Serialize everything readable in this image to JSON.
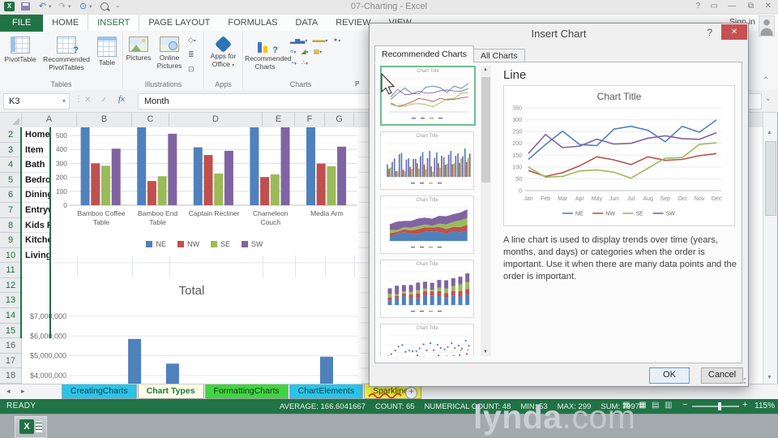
{
  "window": {
    "title": "07-Charting - Excel",
    "sign_in": "Sign in"
  },
  "glyphs": {
    "excel_logo": "X",
    "dropdown": "▾",
    "help": "?",
    "close": "✕",
    "minimize": "—",
    "restore": "⧉",
    "ribbon_display": "▭",
    "undo": "↶",
    "redo": "↷",
    "touch": "⊙",
    "name_x": "✕",
    "name_check": "✓",
    "name_fx": "fx",
    "dots": "⋮",
    "up": "▲",
    "down": "▼",
    "nav_left": "◂",
    "nav_right": "▸",
    "plus": "+",
    "collapse": "⌃",
    "expand": "⌄",
    "minus": "−",
    "zoom_plus": "+",
    "col_bars": "▂▅▃",
    "hbar": "▬▬",
    "stock": "✶",
    "wave": "≈",
    "area": "◢",
    "combo": "▦",
    "pie": "◔",
    "scatter": "∴",
    "shapes": "◇",
    "smartart": "≣",
    "screenshot": "⊡",
    "view_grid": "▦",
    "view_normal": "▦",
    "view_layout": "▤",
    "view_break": "▥"
  },
  "ribbon": {
    "active_tab": "INSERT",
    "tabs": [
      "FILE",
      "HOME",
      "INSERT",
      "PAGE LAYOUT",
      "FORMULAS",
      "DATA",
      "REVIEW",
      "VIEW"
    ],
    "groups": [
      {
        "label": "Tables",
        "buttons": [
          "PivotTable",
          "Recommended PivotTables",
          "Table"
        ]
      },
      {
        "label": "Illustrations",
        "buttons": [
          "Pictures",
          "Online Pictures"
        ]
      },
      {
        "label": "Apps",
        "buttons": [
          "Apps for Office"
        ]
      },
      {
        "label": "Charts",
        "buttons": [
          "Recommended Charts"
        ],
        "clipped_button": "P"
      }
    ]
  },
  "formula_bar": {
    "name_box": "K3",
    "value": "Month"
  },
  "sheet": {
    "columns": [
      "A",
      "B",
      "C",
      "D",
      "E",
      "F",
      "G",
      "H"
    ],
    "rows": [
      {
        "n": "2",
        "label": "Home",
        "highlight": true
      },
      {
        "n": "3",
        "label": "Item",
        "highlight": true
      },
      {
        "n": "4",
        "label": "Bath",
        "highlight": true
      },
      {
        "n": "5",
        "label": "Bedro",
        "highlight": true
      },
      {
        "n": "6",
        "label": "Dining",
        "highlight": true
      },
      {
        "n": "7",
        "label": "Entryw",
        "highlight": true
      },
      {
        "n": "8",
        "label": "Kids R",
        "highlight": true
      },
      {
        "n": "9",
        "label": "Kitche",
        "highlight": true
      },
      {
        "n": "10",
        "label": "Living",
        "highlight": true
      },
      {
        "n": "11",
        "highlight": true
      },
      {
        "n": "12",
        "highlight": true
      },
      {
        "n": "13",
        "highlight": true
      },
      {
        "n": "14",
        "highlight": true
      },
      {
        "n": "15",
        "highlight": true
      },
      {
        "n": "16",
        "highlight": false
      },
      {
        "n": "17",
        "highlight": false
      },
      {
        "n": "18",
        "highlight": false
      }
    ]
  },
  "sheet_tabs": {
    "tabs": [
      {
        "label": "CreatingCharts",
        "color": "#2ac4e9",
        "text_color": "#0d3c49",
        "active": false,
        "annotated": false
      },
      {
        "label": "Chart Types",
        "color": "#ffffe6",
        "text_color": "#1f7244",
        "active": true,
        "annotated": false
      },
      {
        "label": "FormattingCharts",
        "color": "#41d441",
        "text_color": "#0e3a0e",
        "active": false,
        "annotated": false
      },
      {
        "label": "ChartElements",
        "color": "#2ac4e9",
        "text_color": "#0d3c49",
        "active": false,
        "annotated": false
      },
      {
        "label": "Sparklines",
        "color": "#f9f93c",
        "text_color": "#4a4a06",
        "active": false,
        "annotated": true
      }
    ]
  },
  "status_bar": {
    "mode": "READY",
    "stats": [
      {
        "label": "AVERAGE",
        "value": "166.6041667"
      },
      {
        "label": "COUNT",
        "value": "65"
      },
      {
        "label": "NUMERICAL COUNT",
        "value": "48"
      },
      {
        "label": "MIN",
        "value": "53"
      },
      {
        "label": "MAX",
        "value": "299"
      },
      {
        "label": "SUM",
        "value": "7997"
      }
    ],
    "zoom_level": "115%"
  },
  "dialog": {
    "title": "Insert Chart",
    "tabs": [
      "Recommended Charts",
      "All Charts"
    ],
    "active_tab": "Recommended Charts",
    "preview_heading": "Line",
    "description": "A line chart is used to display trends over time (years, months, and days) or categories when the order is important. Use it when there are many data points and the order is important.",
    "ok_label": "OK",
    "cancel_label": "Cancel",
    "thumbnails": [
      {
        "type": "line",
        "caption": "Chart Title",
        "selected": true
      },
      {
        "type": "clustered-column",
        "caption": "Chart Title",
        "selected": false
      },
      {
        "type": "stacked-area",
        "caption": "Chart Title",
        "selected": false
      },
      {
        "type": "stacked-column",
        "caption": "Chart Title",
        "selected": false
      },
      {
        "type": "scatter",
        "caption": "Chart Title",
        "selected": false
      }
    ]
  },
  "watermark": {
    "brand": "lynda.com"
  },
  "palette": {
    "NE": "#4f81bd",
    "NW": "#c0504d",
    "SE": "#9bbb59",
    "SW": "#8064a2",
    "excel_green": "#217346"
  },
  "chart_data": [
    {
      "id": "worksheet-region-chart",
      "type": "bar",
      "title": "",
      "categories": [
        "Bamboo Coffee Table",
        "Bamboo End Table",
        "Captain Recliner",
        "Chameleon Couch",
        "Media Arm"
      ],
      "series": [
        {
          "name": "NE",
          "color": "#4f81bd",
          "values": [
            580,
            575,
            415,
            585,
            575
          ]
        },
        {
          "name": "NW",
          "color": "#c0504d",
          "values": [
            300,
            173,
            360,
            202,
            298
          ]
        },
        {
          "name": "SE",
          "color": "#9bbb59",
          "values": [
            283,
            208,
            227,
            221,
            279
          ]
        },
        {
          "name": "SW",
          "color": "#8064a2",
          "values": [
            405,
            512,
            390,
            570,
            420
          ]
        }
      ],
      "ylim": [
        0,
        500
      ],
      "yticks": [
        0,
        100,
        200,
        300,
        400,
        500
      ],
      "legend": [
        "NE",
        "NW",
        "SE",
        "SW"
      ],
      "legend_position": "bottom",
      "note": "tallest bars clipped at top of scrolled viewport"
    },
    {
      "id": "worksheet-total-chart",
      "type": "bar",
      "title": "Total",
      "ytick_labels": [
        "$7,000,000",
        "$6,000,000",
        "$5,000,000",
        "$4,000,000"
      ],
      "bars": [
        {
          "x_frac": 0.223,
          "value": 5850000
        },
        {
          "x_frac": 0.357,
          "value": 4600000
        },
        {
          "x_frac": 0.9,
          "value": 4950000
        }
      ],
      "color": "#4f81bd",
      "note": "lower portion of chart cut off by sheet tab bar"
    },
    {
      "id": "dialog-line-preview",
      "type": "line",
      "title": "Chart Title",
      "x": [
        "Jan",
        "Feb",
        "Mar",
        "Apr",
        "May",
        "Jun",
        "Jul",
        "Aug",
        "Sep",
        "Oct",
        "Nov",
        "Dec"
      ],
      "ylim": [
        0,
        350
      ],
      "ytick_step": 50,
      "series": [
        {
          "name": "NE",
          "color": "#4f81bd",
          "values": [
            132,
            195,
            252,
            195,
            190,
            260,
            272,
            255,
            207,
            272,
            247,
            299
          ]
        },
        {
          "name": "NW",
          "color": "#c0504d",
          "values": [
            85,
            60,
            76,
            105,
            143,
            130,
            110,
            143,
            128,
            132,
            148,
            157
          ]
        },
        {
          "name": "SE",
          "color": "#9bbb59",
          "values": [
            100,
            57,
            60,
            83,
            88,
            78,
            53,
            95,
            137,
            140,
            196,
            202
          ]
        },
        {
          "name": "SW",
          "color": "#8064a2",
          "values": [
            157,
            237,
            182,
            188,
            218,
            197,
            200,
            222,
            232,
            220,
            217,
            245
          ]
        }
      ],
      "legend": [
        "NE",
        "NW",
        "SE",
        "SW"
      ],
      "legend_position": "bottom"
    }
  ]
}
